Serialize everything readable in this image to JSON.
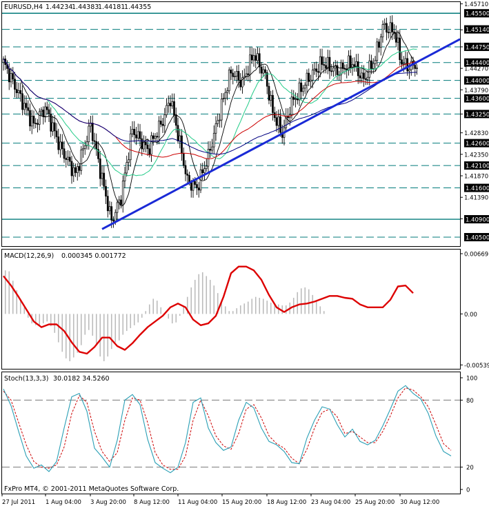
{
  "chart_data": [
    {
      "type": "candlestick",
      "symbol_label": "EURUSD,H4",
      "quote": {
        "open": "1.44234",
        "high": "1.44383",
        "low": "1.44181",
        "close": "1.44355"
      },
      "ylim": [
        1.403,
        1.4575
      ],
      "axis_ticks": [
        "1.45710",
        "1.45130",
        "1.44750",
        "1.44270",
        "1.43790",
        "1.43250",
        "1.42830",
        "1.42350",
        "1.41870",
        "1.41390",
        "1.40910"
      ],
      "level_labels": [
        "1.45500",
        "1.45140",
        "1.44750",
        "1.44400",
        "1.44000",
        "1.43600",
        "1.43250",
        "1.42600",
        "1.42100",
        "1.41600",
        "1.40900",
        "1.40500"
      ],
      "levels": [
        1.455,
        1.4514,
        1.4475,
        1.444,
        1.44,
        1.436,
        1.4325,
        1.426,
        1.421,
        1.416,
        1.409,
        1.405
      ],
      "highlight_levels": [
        1.455,
        1.409
      ],
      "trendline": {
        "from": [
          52,
          1.4068
        ],
        "to": [
          222,
          1.445
        ]
      },
      "colors": {
        "up": "#000000",
        "down": "#000000",
        "ma_fast": "#000000",
        "ma_mid": "#22cc88",
        "ma_slow": "#cc0000",
        "ma_long": "#000080",
        "trendline": "#1a2ad6",
        "level": "#007a7a",
        "level_label_bg": "#000000"
      }
    },
    {
      "type": "histogram+line",
      "indicator_label": "MACD(12,26,9)",
      "value_label": "0.000345 0.001772",
      "ylim": [
        -0.0058,
        0.0068
      ],
      "axis_ticks": [
        "0.00669",
        "0.00",
        "-0.00539"
      ],
      "colors": {
        "histogram": "#bbbbbb",
        "signal": "#dd0000"
      },
      "signal": [
        [
          0,
          0.004
        ],
        [
          4,
          0.003
        ],
        [
          8,
          0.0018
        ],
        [
          12,
          0.0005
        ],
        [
          16,
          -0.0008
        ],
        [
          20,
          -0.0014
        ],
        [
          24,
          -0.0011
        ],
        [
          28,
          -0.0011
        ],
        [
          32,
          -0.0018
        ],
        [
          36,
          -0.003
        ],
        [
          40,
          -0.004
        ],
        [
          44,
          -0.0042
        ],
        [
          48,
          -0.0035
        ],
        [
          52,
          -0.0025
        ],
        [
          56,
          -0.0025
        ],
        [
          60,
          -0.0034
        ],
        [
          64,
          -0.0038
        ],
        [
          68,
          -0.0031
        ],
        [
          72,
          -0.0022
        ],
        [
          76,
          -0.0014
        ],
        [
          80,
          -0.0008
        ],
        [
          84,
          -0.0002
        ],
        [
          88,
          0.0007
        ],
        [
          92,
          0.0011
        ],
        [
          96,
          0.0007
        ],
        [
          100,
          -0.0006
        ],
        [
          104,
          -0.0012
        ],
        [
          108,
          -0.001
        ],
        [
          112,
          -0.0002
        ],
        [
          116,
          0.0018
        ],
        [
          120,
          0.0043
        ],
        [
          124,
          0.005
        ],
        [
          128,
          0.005
        ],
        [
          132,
          0.0046
        ],
        [
          136,
          0.0036
        ],
        [
          140,
          0.002
        ],
        [
          144,
          0.0007
        ],
        [
          148,
          0.0002
        ],
        [
          152,
          0.0007
        ],
        [
          156,
          0.001
        ],
        [
          160,
          0.0011
        ],
        [
          164,
          0.0013
        ],
        [
          168,
          0.0016
        ],
        [
          172,
          0.0019
        ],
        [
          176,
          0.0019
        ],
        [
          180,
          0.0017
        ],
        [
          184,
          0.0016
        ],
        [
          188,
          0.001
        ],
        [
          192,
          0.0007
        ],
        [
          196,
          0.0007
        ],
        [
          200,
          0.0007
        ],
        [
          204,
          0.0015
        ],
        [
          208,
          0.0029
        ],
        [
          212,
          0.003
        ],
        [
          216,
          0.0022
        ]
      ],
      "histogram": [
        [
          1,
          0.0046
        ],
        [
          3,
          0.0045
        ],
        [
          5,
          0.0035
        ],
        [
          7,
          0.0025
        ],
        [
          9,
          0.0016
        ],
        [
          11,
          0.0007
        ],
        [
          13,
          -0.0004
        ],
        [
          15,
          -0.001
        ],
        [
          17,
          -0.0012
        ],
        [
          19,
          -0.0012
        ],
        [
          21,
          -0.001
        ],
        [
          23,
          -0.0008
        ],
        [
          25,
          -0.0013
        ],
        [
          27,
          -0.002
        ],
        [
          29,
          -0.003
        ],
        [
          31,
          -0.004
        ],
        [
          33,
          -0.0047
        ],
        [
          35,
          -0.005
        ],
        [
          37,
          -0.0046
        ],
        [
          39,
          -0.0041
        ],
        [
          41,
          -0.0033
        ],
        [
          43,
          -0.0022
        ],
        [
          45,
          -0.0017
        ],
        [
          47,
          -0.0023
        ],
        [
          49,
          -0.0033
        ],
        [
          51,
          -0.0045
        ],
        [
          53,
          -0.005
        ],
        [
          55,
          -0.0045
        ],
        [
          57,
          -0.0037
        ],
        [
          59,
          -0.003
        ],
        [
          61,
          -0.0028
        ],
        [
          63,
          -0.0022
        ],
        [
          65,
          -0.0018
        ],
        [
          67,
          -0.0015
        ],
        [
          69,
          -0.0012
        ],
        [
          71,
          -0.0009
        ],
        [
          73,
          -0.0004
        ],
        [
          75,
          0.0003
        ],
        [
          77,
          0.001
        ],
        [
          79,
          0.0016
        ],
        [
          81,
          0.0014
        ],
        [
          83,
          0.0007
        ],
        [
          85,
          0.0001
        ],
        [
          87,
          -0.0005
        ],
        [
          89,
          -0.001
        ],
        [
          91,
          -0.0009
        ],
        [
          93,
          -0.0002
        ],
        [
          95,
          0.0008
        ],
        [
          97,
          0.0018
        ],
        [
          99,
          0.0028
        ],
        [
          101,
          0.0036
        ],
        [
          103,
          0.0042
        ],
        [
          105,
          0.0044
        ],
        [
          107,
          0.004
        ],
        [
          109,
          0.0036
        ],
        [
          111,
          0.003
        ],
        [
          113,
          0.0022
        ],
        [
          115,
          0.0014
        ],
        [
          117,
          0.0008
        ],
        [
          119,
          0.0003
        ],
        [
          121,
          0.0003
        ],
        [
          123,
          0.0006
        ],
        [
          125,
          0.0009
        ],
        [
          127,
          0.0011
        ],
        [
          129,
          0.0013
        ],
        [
          131,
          0.0016
        ],
        [
          133,
          0.0018
        ],
        [
          135,
          0.0017
        ],
        [
          137,
          0.0016
        ],
        [
          139,
          0.0014
        ],
        [
          141,
          0.0012
        ],
        [
          143,
          0.0011
        ],
        [
          145,
          0.001
        ],
        [
          147,
          0.0009
        ],
        [
          149,
          0.0009
        ],
        [
          151,
          0.0012
        ],
        [
          153,
          0.0017
        ],
        [
          155,
          0.0023
        ],
        [
          157,
          0.0027
        ],
        [
          159,
          0.0028
        ],
        [
          161,
          0.0026
        ],
        [
          163,
          0.002
        ],
        [
          165,
          0.0013
        ],
        [
          167,
          0.0008
        ],
        [
          169,
          0.0003
        ]
      ]
    },
    {
      "type": "line",
      "indicator_label": "Stoch(13,3,3)",
      "value_label": "30.0182 34.5260",
      "ylim": [
        0,
        100
      ],
      "axis_ticks": [
        "100",
        "80",
        "20",
        "0"
      ],
      "overbought": 80,
      "oversold": 20,
      "colors": {
        "main": "#2a9fb5",
        "signal": "#cc0000"
      },
      "main": [
        [
          0,
          90
        ],
        [
          4,
          75
        ],
        [
          8,
          52
        ],
        [
          12,
          30
        ],
        [
          16,
          19
        ],
        [
          20,
          22
        ],
        [
          24,
          16
        ],
        [
          28,
          25
        ],
        [
          32,
          55
        ],
        [
          36,
          83
        ],
        [
          40,
          86
        ],
        [
          44,
          70
        ],
        [
          48,
          37
        ],
        [
          52,
          29
        ],
        [
          56,
          20
        ],
        [
          60,
          44
        ],
        [
          64,
          80
        ],
        [
          68,
          85
        ],
        [
          72,
          76
        ],
        [
          76,
          45
        ],
        [
          80,
          24
        ],
        [
          84,
          19
        ],
        [
          88,
          15
        ],
        [
          92,
          20
        ],
        [
          96,
          42
        ],
        [
          100,
          78
        ],
        [
          104,
          82
        ],
        [
          108,
          55
        ],
        [
          112,
          42
        ],
        [
          116,
          35
        ],
        [
          120,
          38
        ],
        [
          124,
          62
        ],
        [
          128,
          78
        ],
        [
          132,
          73
        ],
        [
          136,
          55
        ],
        [
          140,
          43
        ],
        [
          144,
          40
        ],
        [
          148,
          34
        ],
        [
          152,
          24
        ],
        [
          156,
          23
        ],
        [
          160,
          46
        ],
        [
          164,
          62
        ],
        [
          168,
          74
        ],
        [
          172,
          72
        ],
        [
          176,
          58
        ],
        [
          180,
          47
        ],
        [
          184,
          54
        ],
        [
          188,
          43
        ],
        [
          192,
          40
        ],
        [
          196,
          44
        ],
        [
          200,
          57
        ],
        [
          204,
          72
        ],
        [
          208,
          88
        ],
        [
          212,
          93
        ],
        [
          216,
          86
        ],
        [
          220,
          81
        ],
        [
          224,
          68
        ],
        [
          228,
          48
        ],
        [
          232,
          34
        ],
        [
          236,
          30
        ]
      ],
      "signal": [
        [
          0,
          88
        ],
        [
          4,
          80
        ],
        [
          8,
          60
        ],
        [
          12,
          40
        ],
        [
          16,
          25
        ],
        [
          20,
          20
        ],
        [
          24,
          19
        ],
        [
          28,
          22
        ],
        [
          32,
          38
        ],
        [
          36,
          68
        ],
        [
          40,
          84
        ],
        [
          44,
          78
        ],
        [
          48,
          52
        ],
        [
          52,
          34
        ],
        [
          56,
          25
        ],
        [
          60,
          33
        ],
        [
          64,
          62
        ],
        [
          68,
          82
        ],
        [
          72,
          80
        ],
        [
          76,
          60
        ],
        [
          80,
          33
        ],
        [
          84,
          22
        ],
        [
          88,
          18
        ],
        [
          92,
          18
        ],
        [
          96,
          30
        ],
        [
          100,
          62
        ],
        [
          104,
          80
        ],
        [
          108,
          66
        ],
        [
          112,
          48
        ],
        [
          116,
          39
        ],
        [
          120,
          36
        ],
        [
          124,
          50
        ],
        [
          128,
          72
        ],
        [
          132,
          76
        ],
        [
          136,
          64
        ],
        [
          140,
          48
        ],
        [
          144,
          41
        ],
        [
          148,
          37
        ],
        [
          152,
          28
        ],
        [
          156,
          23
        ],
        [
          160,
          36
        ],
        [
          164,
          55
        ],
        [
          168,
          69
        ],
        [
          172,
          72
        ],
        [
          176,
          65
        ],
        [
          180,
          50
        ],
        [
          184,
          52
        ],
        [
          188,
          47
        ],
        [
          192,
          42
        ],
        [
          196,
          42
        ],
        [
          200,
          52
        ],
        [
          204,
          66
        ],
        [
          208,
          82
        ],
        [
          212,
          91
        ],
        [
          216,
          89
        ],
        [
          220,
          83
        ],
        [
          224,
          74
        ],
        [
          228,
          58
        ],
        [
          232,
          41
        ],
        [
          236,
          35
        ]
      ]
    }
  ],
  "x_axis_labels": [
    "27 Jul 2011",
    "1 Aug 04:00",
    "3 Aug 20:00",
    "8 Aug 12:00",
    "11 Aug 04:00",
    "15 Aug 20:00",
    "18 Aug 12:00",
    "23 Aug 04:00",
    "25 Aug 20:00",
    "30 Aug 12:00"
  ],
  "footer_text": "FxPro MT4, © 2001-2011 MetaQuotes Software Corp."
}
